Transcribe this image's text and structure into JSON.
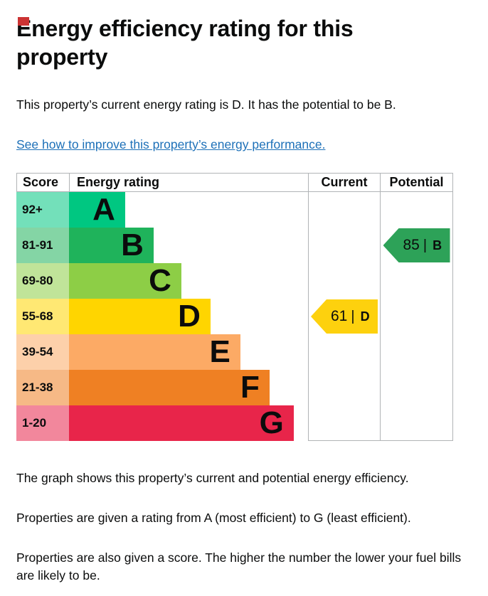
{
  "page": {
    "title": "Energy efficiency rating for this property",
    "intro": "This property’s current energy rating is D. It has the potential to be B.",
    "link": "See how to improve this property’s energy performance.",
    "footer": [
      "The graph shows this property’s current and potential energy efficiency.",
      "Properties are given a rating from A (most efficient) to G (least efficient).",
      "Properties are also given a score. The higher the number the lower your fuel bills are likely to be."
    ]
  },
  "table": {
    "headers": [
      "Score",
      "Energy rating",
      "Current",
      "Potential"
    ]
  },
  "chart_data": {
    "type": "bar",
    "title": "Energy efficiency rating for this property",
    "categories": [
      "A",
      "B",
      "C",
      "D",
      "E",
      "F",
      "G"
    ],
    "score_ranges": [
      "92+",
      "81-91",
      "69-80",
      "55-68",
      "39-54",
      "21-38",
      "1-20"
    ],
    "bands": [
      {
        "grade": "A",
        "score_range": "92+",
        "color": "#00c781",
        "bar_fraction": 0.235
      },
      {
        "grade": "B",
        "score_range": "81-91",
        "color": "#1fb35b",
        "bar_fraction": 0.354
      },
      {
        "grade": "C",
        "score_range": "69-80",
        "color": "#8dce46",
        "bar_fraction": 0.47
      },
      {
        "grade": "D",
        "score_range": "55-68",
        "color": "#ffd500",
        "bar_fraction": 0.592
      },
      {
        "grade": "E",
        "score_range": "39-54",
        "color": "#fcaa65",
        "bar_fraction": 0.717
      },
      {
        "grade": "F",
        "score_range": "21-38",
        "color": "#ef8023",
        "bar_fraction": 0.839
      },
      {
        "grade": "G",
        "score_range": "1-20",
        "color": "#e8254a",
        "bar_fraction": 0.94
      }
    ],
    "current": {
      "label": "Current",
      "score": 61,
      "grade": "D",
      "color": "#fdd10e"
    },
    "potential": {
      "label": "Potential",
      "score": 85,
      "grade": "B",
      "color": "#2da258"
    },
    "separator": "|",
    "legend_position": "none",
    "grid": false
  },
  "colors": {
    "text": "#0b0c0c",
    "link": "#1d70b8",
    "table_border": "#b1b4b6",
    "marker": "#cc3333"
  }
}
